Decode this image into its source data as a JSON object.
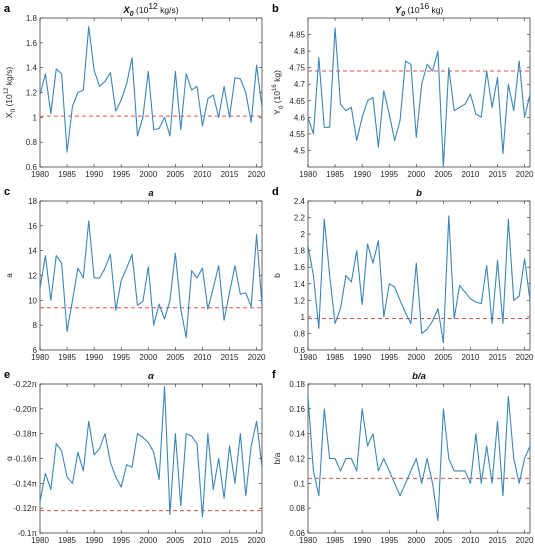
{
  "colors": {
    "series": "#3a86b8",
    "reference": "#d9534f",
    "axis": "#262626"
  },
  "chart_data": [
    {
      "type": "line",
      "panel": "a",
      "title": "X",
      "title_sub": "0",
      "title_rest": " (10",
      "title_sup": "12",
      "title_end": " kg/s)",
      "ylabel": "X",
      "ylabel_sub": "0",
      "ylabel_rest": " (10",
      "ylabel_sup": "12",
      "ylabel_end": " kg/s)",
      "xlim": [
        1980,
        2021
      ],
      "ylim": [
        0.6,
        1.8
      ],
      "xticks": [
        1980,
        1985,
        1990,
        1995,
        2000,
        2005,
        2010,
        2015,
        2020
      ],
      "xtick_labels": [
        "1980",
        "1985",
        "1990",
        "1995",
        "2000",
        "2005",
        "2010",
        "2015",
        "2020"
      ],
      "yticks": [
        0.6,
        0.8,
        1.0,
        1.2,
        1.4,
        1.6,
        1.8
      ],
      "ytick_labels": [
        "0.6",
        "0.8",
        "1",
        "1.2",
        "1.4",
        "1.6",
        "1.8"
      ],
      "reference": 1.01,
      "x": [
        1980,
        1981,
        1982,
        1983,
        1984,
        1985,
        1986,
        1987,
        1988,
        1989,
        1990,
        1991,
        1992,
        1993,
        1994,
        1995,
        1996,
        1997,
        1998,
        1999,
        2000,
        2001,
        2002,
        2003,
        2004,
        2005,
        2006,
        2007,
        2008,
        2009,
        2010,
        2011,
        2012,
        2013,
        2014,
        2015,
        2016,
        2017,
        2018,
        2019,
        2020,
        2021
      ],
      "y": [
        1.18,
        1.35,
        1.03,
        1.39,
        1.35,
        0.72,
        1.09,
        1.2,
        1.22,
        1.73,
        1.38,
        1.25,
        1.29,
        1.36,
        1.05,
        1.14,
        1.27,
        1.48,
        0.85,
        1.0,
        1.37,
        0.9,
        0.91,
        1.0,
        0.85,
        1.37,
        0.9,
        1.35,
        1.22,
        1.25,
        0.93,
        1.15,
        1.18,
        1.0,
        1.25,
        1.0,
        1.32,
        1.31,
        1.2,
        0.96,
        1.42,
        1.08
      ]
    },
    {
      "type": "line",
      "panel": "b",
      "title": "Y",
      "title_sub": "0",
      "title_rest": " (10",
      "title_sup": "16",
      "title_end": " kg)",
      "ylabel": "Y",
      "ylabel_sub": "0",
      "ylabel_rest": " (10",
      "ylabel_sup": "16",
      "ylabel_end": " kg)",
      "xlim": [
        1980,
        2021
      ],
      "ylim": [
        4.45,
        4.9
      ],
      "xticks": [
        1980,
        1985,
        1990,
        1995,
        2000,
        2005,
        2010,
        2015,
        2020
      ],
      "xtick_labels": [
        "1980",
        "1985",
        "1990",
        "1995",
        "2000",
        "2005",
        "2010",
        "2015",
        "2020"
      ],
      "yticks": [
        4.5,
        4.55,
        4.6,
        4.65,
        4.7,
        4.75,
        4.8,
        4.85
      ],
      "ytick_labels": [
        "4.5",
        "4.55",
        "4.6",
        "4.65",
        "4.7",
        "4.75",
        "4.8",
        "4.85"
      ],
      "reference": 4.74,
      "x": [
        1980,
        1981,
        1982,
        1983,
        1984,
        1985,
        1986,
        1987,
        1988,
        1989,
        1990,
        1991,
        1992,
        1993,
        1994,
        1995,
        1996,
        1997,
        1998,
        1999,
        2000,
        2001,
        2002,
        2003,
        2004,
        2005,
        2006,
        2007,
        2008,
        2009,
        2010,
        2011,
        2012,
        2013,
        2014,
        2015,
        2016,
        2017,
        2018,
        2019,
        2020,
        2021
      ],
      "y": [
        4.6,
        4.55,
        4.78,
        4.57,
        4.57,
        4.87,
        4.64,
        4.62,
        4.63,
        4.53,
        4.6,
        4.65,
        4.66,
        4.51,
        4.68,
        4.61,
        4.53,
        4.59,
        4.77,
        4.76,
        4.54,
        4.7,
        4.76,
        4.74,
        4.8,
        4.45,
        4.75,
        4.62,
        4.63,
        4.64,
        4.67,
        4.61,
        4.6,
        4.74,
        4.63,
        4.72,
        4.49,
        4.7,
        4.62,
        4.77,
        4.6,
        4.67
      ]
    },
    {
      "type": "line",
      "panel": "c",
      "title": "a",
      "ylabel": "a",
      "xlim": [
        1980,
        2021
      ],
      "ylim": [
        6,
        18
      ],
      "xticks": [
        1980,
        1985,
        1990,
        1995,
        2000,
        2005,
        2010,
        2015,
        2020
      ],
      "xtick_labels": [
        "1980",
        "1985",
        "1990",
        "1995",
        "2000",
        "2005",
        "2010",
        "2015",
        "2020"
      ],
      "yticks": [
        6,
        8,
        10,
        12,
        14,
        16,
        18
      ],
      "ytick_labels": [
        "6",
        "8",
        "10",
        "12",
        "14",
        "16",
        "18"
      ],
      "reference": 9.4,
      "x": [
        1980,
        1981,
        1982,
        1983,
        1984,
        1985,
        1986,
        1987,
        1988,
        1989,
        1990,
        1991,
        1992,
        1993,
        1994,
        1995,
        1996,
        1997,
        1998,
        1999,
        2000,
        2001,
        2002,
        2003,
        2004,
        2005,
        2006,
        2007,
        2008,
        2009,
        2010,
        2011,
        2012,
        2013,
        2014,
        2015,
        2016,
        2017,
        2018,
        2019,
        2020,
        2021
      ],
      "y": [
        11.0,
        13.6,
        10.0,
        13.6,
        13.0,
        7.5,
        10.0,
        12.6,
        11.8,
        16.4,
        11.8,
        11.8,
        12.6,
        13.7,
        9.2,
        11.6,
        12.6,
        13.7,
        9.6,
        9.9,
        12.7,
        8.0,
        9.7,
        8.5,
        10.0,
        13.8,
        9.3,
        7.0,
        12.4,
        11.8,
        12.6,
        9.3,
        11.0,
        12.8,
        8.4,
        10.6,
        12.8,
        10.5,
        10.6,
        9.5,
        15.3,
        9.6
      ]
    },
    {
      "type": "line",
      "panel": "d",
      "title": "b",
      "ylabel": "b",
      "xlim": [
        1980,
        2021
      ],
      "ylim": [
        0.6,
        2.4
      ],
      "xticks": [
        1980,
        1985,
        1990,
        1995,
        2000,
        2005,
        2010,
        2015,
        2020
      ],
      "xtick_labels": [
        "1980",
        "1985",
        "1990",
        "1995",
        "2000",
        "2005",
        "2010",
        "2015",
        "2020"
      ],
      "yticks": [
        0.6,
        0.8,
        1.0,
        1.2,
        1.4,
        1.6,
        1.8,
        2.0,
        2.2,
        2.4
      ],
      "ytick_labels": [
        "0.6",
        "0.8",
        "1",
        "1.2",
        "1.4",
        "1.6",
        "1.8",
        "2",
        "2.2",
        "2.4"
      ],
      "reference": 0.98,
      "x": [
        1980,
        1981,
        1982,
        1983,
        1984,
        1985,
        1986,
        1987,
        1988,
        1989,
        1990,
        1991,
        1992,
        1993,
        1994,
        1995,
        1996,
        1997,
        1998,
        1999,
        2000,
        2001,
        2002,
        2003,
        2004,
        2005,
        2006,
        2007,
        2008,
        2009,
        2010,
        2011,
        2012,
        2013,
        2014,
        2015,
        2016,
        2017,
        2018,
        2019,
        2020,
        2021
      ],
      "y": [
        1.86,
        1.5,
        0.86,
        2.18,
        1.5,
        0.92,
        1.1,
        1.5,
        1.42,
        1.8,
        1.15,
        1.88,
        1.65,
        1.92,
        1.0,
        1.4,
        1.36,
        1.2,
        1.05,
        0.92,
        1.65,
        0.8,
        0.85,
        0.95,
        1.1,
        0.69,
        2.22,
        0.98,
        1.38,
        1.3,
        1.22,
        1.18,
        1.16,
        1.62,
        0.92,
        1.68,
        0.92,
        2.18,
        1.2,
        1.25,
        1.7,
        1.2
      ]
    },
    {
      "type": "line",
      "panel": "e",
      "title": "α",
      "ylabel": "α",
      "xlim": [
        1980,
        2021
      ],
      "ylim": [
        -0.22,
        -0.1
      ],
      "xticks": [
        1980,
        1985,
        1990,
        1995,
        2000,
        2005,
        2010,
        2015,
        2020
      ],
      "xtick_labels": [
        "1980",
        "1985",
        "1990",
        "1995",
        "2000",
        "2005",
        "2010",
        "2015",
        "2020"
      ],
      "yticks": [
        -0.22,
        -0.2,
        -0.18,
        -0.16,
        -0.14,
        -0.12,
        -0.1
      ],
      "ytick_labels": [
        "-0.22π",
        "-0.20π",
        "-0.18π",
        "-0.16π",
        "-0.14π",
        "-0.12π",
        "-0.1π"
      ],
      "y_reversed": true,
      "reference": -0.118,
      "x": [
        1980,
        1981,
        1982,
        1983,
        1984,
        1985,
        1986,
        1987,
        1988,
        1989,
        1990,
        1991,
        1992,
        1993,
        1994,
        1995,
        1996,
        1997,
        1998,
        1999,
        2000,
        2001,
        2002,
        2003,
        2004,
        2005,
        2006,
        2007,
        2008,
        2009,
        2010,
        2011,
        2012,
        2013,
        2014,
        2015,
        2016,
        2017,
        2018,
        2019,
        2020,
        2021
      ],
      "y": [
        -0.125,
        -0.148,
        -0.135,
        -0.172,
        -0.166,
        -0.145,
        -0.14,
        -0.165,
        -0.15,
        -0.19,
        -0.163,
        -0.168,
        -0.18,
        -0.157,
        -0.145,
        -0.137,
        -0.155,
        -0.153,
        -0.18,
        -0.177,
        -0.173,
        -0.165,
        -0.143,
        -0.218,
        -0.115,
        -0.18,
        -0.122,
        -0.18,
        -0.178,
        -0.172,
        -0.113,
        -0.18,
        -0.135,
        -0.16,
        -0.128,
        -0.17,
        -0.14,
        -0.18,
        -0.13,
        -0.17,
        -0.19,
        -0.153
      ]
    },
    {
      "type": "line",
      "panel": "f",
      "title": "b/a",
      "ylabel": "b/a",
      "xlim": [
        1980,
        2021
      ],
      "ylim": [
        0.06,
        0.18
      ],
      "xticks": [
        1980,
        1985,
        1990,
        1995,
        2000,
        2005,
        2010,
        2015,
        2020
      ],
      "xtick_labels": [
        "1980",
        "1985",
        "1990",
        "1995",
        "2000",
        "2005",
        "2010",
        "2015",
        "2020"
      ],
      "yticks": [
        0.06,
        0.08,
        0.1,
        0.12,
        0.14,
        0.16,
        0.18
      ],
      "ytick_labels": [
        "0.06",
        "0.08",
        "0.1",
        "0.12",
        "0.14",
        "0.16",
        "0.18"
      ],
      "reference": 0.104,
      "x": [
        1980,
        1981,
        1982,
        1983,
        1984,
        1985,
        1986,
        1987,
        1988,
        1989,
        1990,
        1991,
        1992,
        1993,
        1994,
        1995,
        1996,
        1997,
        1998,
        1999,
        2000,
        2001,
        2002,
        2003,
        2004,
        2005,
        2006,
        2007,
        2008,
        2009,
        2010,
        2011,
        2012,
        2013,
        2014,
        2015,
        2016,
        2017,
        2018,
        2019,
        2020,
        2021
      ],
      "y": [
        0.17,
        0.11,
        0.09,
        0.16,
        0.12,
        0.12,
        0.11,
        0.12,
        0.12,
        0.11,
        0.16,
        0.13,
        0.14,
        0.11,
        0.12,
        0.11,
        0.1,
        0.09,
        0.1,
        0.11,
        0.12,
        0.1,
        0.12,
        0.1,
        0.07,
        0.16,
        0.12,
        0.11,
        0.11,
        0.11,
        0.1,
        0.14,
        0.1,
        0.13,
        0.1,
        0.15,
        0.09,
        0.17,
        0.12,
        0.1,
        0.12,
        0.13
      ]
    }
  ]
}
